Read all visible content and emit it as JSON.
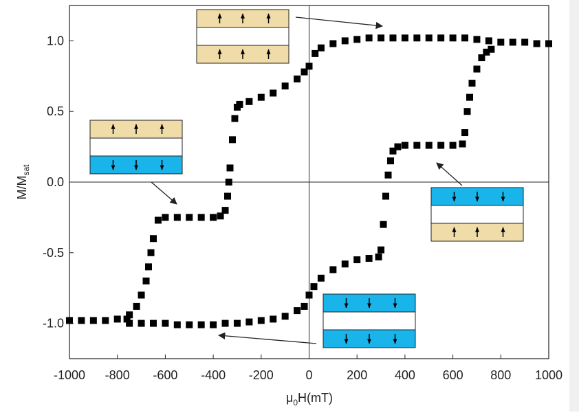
{
  "chart_data": {
    "type": "scatter",
    "x_label": {
      "main": "μ",
      "sub": "0",
      "tail": "H(mT)"
    },
    "y_label": {
      "main": "M/M",
      "sub": "sat"
    },
    "xlim": [
      -1000,
      1000
    ],
    "ylim": [
      -1.25,
      1.25
    ],
    "xticks": [
      -1000,
      -800,
      -600,
      -400,
      -200,
      0,
      200,
      400,
      600,
      800,
      1000
    ],
    "yticks": [
      {
        "value": -1,
        "label": "-1.0"
      },
      -0.5,
      {
        "value": 0,
        "label": "0.0"
      },
      0.5,
      {
        "value": 1,
        "label": "1.0"
      }
    ],
    "zero_lines": true,
    "series": [
      {
        "color": "#000000",
        "x": [
          1000,
          950,
          900,
          850,
          800,
          750,
          700,
          650,
          600,
          550,
          500,
          450,
          400,
          350,
          300,
          250,
          200,
          150,
          100,
          50,
          25,
          0,
          -20,
          -50,
          -100,
          -150,
          -200,
          -250,
          -290,
          -300,
          -310,
          -320,
          -330,
          -335,
          -340,
          -350,
          -370,
          -400,
          -450,
          -500,
          -550,
          -600,
          -630,
          -650,
          -660,
          -670,
          -680,
          -700,
          -720,
          -750,
          -760,
          -800,
          -850,
          -900,
          -950,
          -1000
        ],
        "values": [
          0.98,
          0.98,
          0.99,
          0.99,
          0.99,
          1.0,
          1.01,
          1.02,
          1.02,
          1.02,
          1.02,
          1.02,
          1.02,
          1.02,
          1.02,
          1.02,
          1.01,
          1.0,
          0.98,
          0.95,
          0.91,
          0.82,
          0.78,
          0.73,
          0.68,
          0.63,
          0.6,
          0.57,
          0.55,
          0.53,
          0.45,
          0.3,
          0.1,
          0,
          -0.1,
          -0.2,
          -0.24,
          -0.25,
          -0.25,
          -0.25,
          -0.25,
          -0.25,
          -0.27,
          -0.4,
          -0.5,
          -0.6,
          -0.7,
          -0.8,
          -0.88,
          -0.94,
          -0.97,
          -0.97,
          -0.98,
          -0.98,
          -0.98,
          -0.98
        ]
      },
      {
        "color": "#000000",
        "x": [
          -750,
          -700,
          -650,
          -600,
          -550,
          -500,
          -450,
          -400,
          -350,
          -300,
          -250,
          -200,
          -150,
          -100,
          -50,
          -20,
          0,
          20,
          50,
          100,
          150,
          200,
          250,
          290,
          300,
          310,
          320,
          330,
          340,
          350,
          370,
          400,
          450,
          500,
          550,
          600,
          640,
          650,
          660,
          670,
          680,
          700,
          720,
          740,
          760
        ],
        "values": [
          -1.0,
          -1.0,
          -1.0,
          -1.0,
          -1.01,
          -1.01,
          -1.01,
          -1.01,
          -1.0,
          -1.0,
          -0.99,
          -0.98,
          -0.97,
          -0.95,
          -0.91,
          -0.88,
          -0.8,
          -0.74,
          -0.68,
          -0.62,
          -0.58,
          -0.55,
          -0.54,
          -0.53,
          -0.48,
          -0.3,
          -0.1,
          0.05,
          0.15,
          0.22,
          0.25,
          0.26,
          0.26,
          0.26,
          0.26,
          0.26,
          0.27,
          0.35,
          0.5,
          0.6,
          0.7,
          0.8,
          0.88,
          0.92,
          0.94
        ]
      }
    ]
  }
}
